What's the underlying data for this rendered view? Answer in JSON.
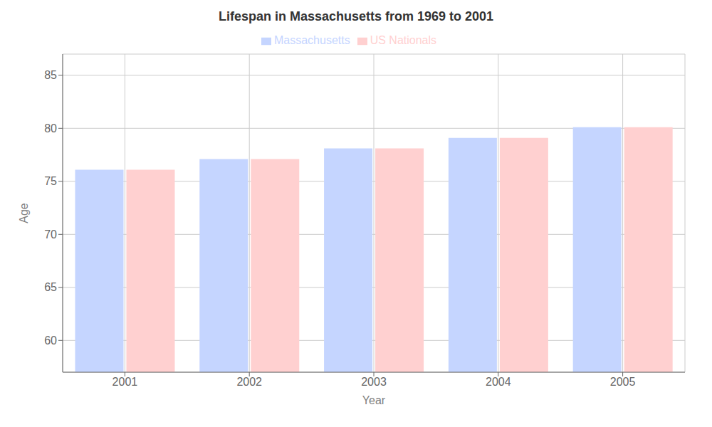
{
  "chart_data": {
    "type": "bar",
    "title": "Lifespan in Massachusetts from 1969 to 2001",
    "xlabel": "Year",
    "ylabel": "Age",
    "categories": [
      "2001",
      "2002",
      "2003",
      "2004",
      "2005"
    ],
    "series": [
      {
        "name": "Massachusetts",
        "color": "#c5d5ff",
        "values": [
          76.1,
          77.1,
          78.1,
          79.1,
          80.1
        ]
      },
      {
        "name": "US Nationals",
        "color": "#ffd0d0",
        "values": [
          76.1,
          77.1,
          78.1,
          79.1,
          80.1
        ]
      }
    ],
    "ylim": [
      57,
      87
    ],
    "yticks": [
      60,
      65,
      70,
      75,
      80,
      85
    ],
    "grid": true,
    "legend": "top"
  }
}
